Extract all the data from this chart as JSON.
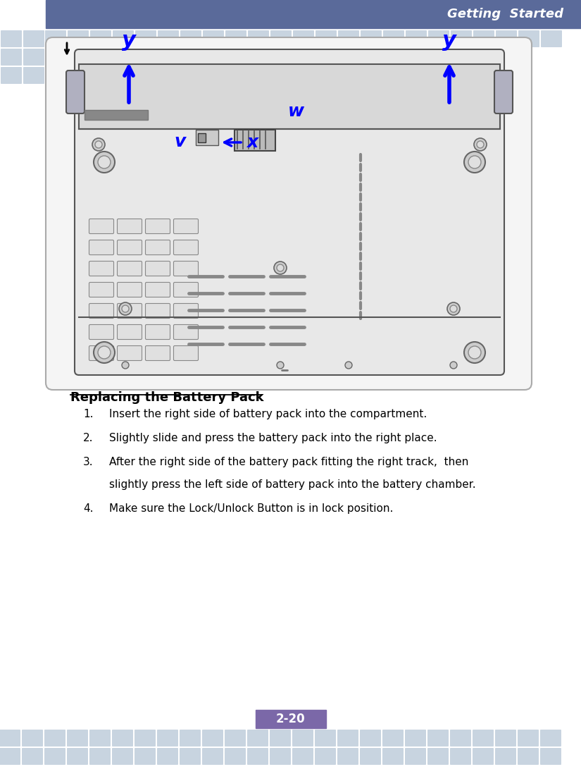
{
  "title_text": "Getting  Started",
  "title_bg_color": "#5a6a9a",
  "title_text_color": "#ffffff",
  "page_num_text": "2-20",
  "page_num_bg_color": "#7b68a8",
  "page_num_text_color": "#ffffff",
  "border_tile_color": "#c8d4e0",
  "bg_color": "#ffffff",
  "heading_text": "Replacing the Battery Pack",
  "item1": "Insert the right side of battery pack into the compartment.",
  "item2": "Slightly slide and press the battery pack into the right place.",
  "item3a": "After the right side of the battery pack fitting the right track,  then",
  "item3b": "slightly press the left side of battery pack into the battery chamber.",
  "item4": "Make sure the Lock/Unlock Button is in lock position.",
  "arrow_color": "#0000ff",
  "label_color": "#0000ff",
  "diagram_bg": "#f5f5f5",
  "diagram_border": "#aaaaaa",
  "laptop_outline": "#555555"
}
